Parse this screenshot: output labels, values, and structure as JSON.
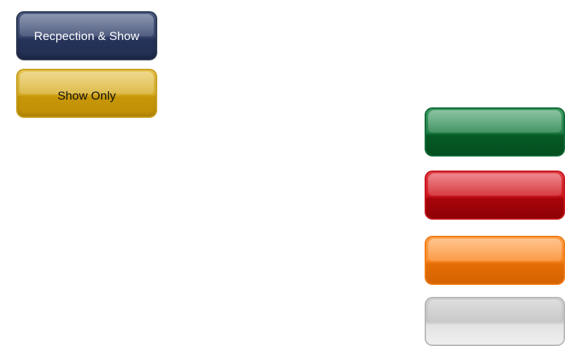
{
  "buttons": {
    "reception_show": {
      "label": "Recpection & Show",
      "color": "#3a4870"
    },
    "show_only": {
      "label": "Show Only",
      "color": "#d9b232"
    },
    "green": {
      "label": "",
      "color": "#23824a"
    },
    "red": {
      "label": "",
      "color": "#d01a22"
    },
    "orange": {
      "label": "",
      "color": "#f98a28"
    },
    "silver": {
      "label": "",
      "color": "#c4c4c4"
    }
  }
}
